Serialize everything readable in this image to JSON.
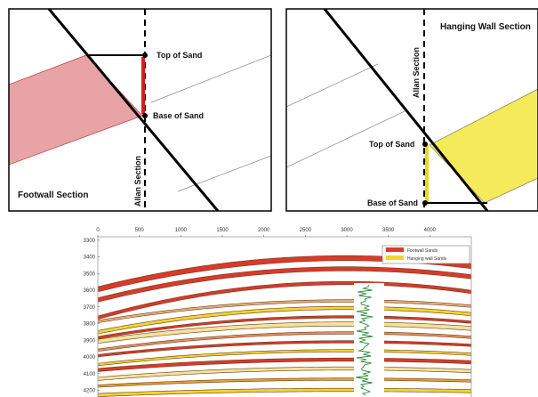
{
  "footwall_panel": {
    "title": "Footwall Section",
    "top_label": "Top of Sand",
    "base_label": "Base of Sand",
    "section_label": "Allan Section"
  },
  "hanging_wall_panel": {
    "title": "Hanging Wall Section",
    "top_label": "Top of Sand",
    "base_label": "Base of Sand",
    "section_label": "Allan Section"
  },
  "seismic_panel": {
    "xlim": [
      0,
      4500
    ],
    "ylim": [
      3280,
      4240
    ],
    "xticks": [
      0,
      500,
      1000,
      1500,
      2000,
      2500,
      3000,
      3500,
      4000
    ],
    "yticks": [
      3300,
      3400,
      3500,
      3600,
      3700,
      3800,
      3900,
      4000,
      4100,
      4200
    ],
    "legend": [
      {
        "name": "Footwall Sands",
        "color": "#d93a2b"
      },
      {
        "name": "Hanging wall Sands",
        "color": "#f2d430"
      }
    ]
  }
}
